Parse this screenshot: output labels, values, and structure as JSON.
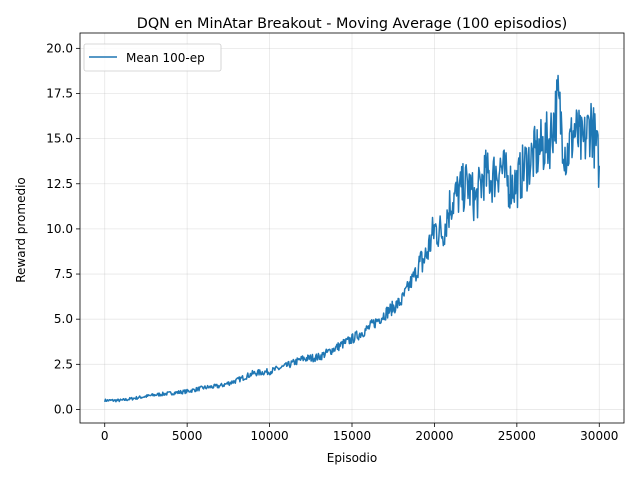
{
  "chart_data": {
    "type": "line",
    "title": "DQN en MinAtar Breakout - Moving Average (100 episodios)",
    "xlabel": "Episodio",
    "ylabel": "Reward promedio",
    "xlim": [
      -1500,
      31500
    ],
    "ylim": [
      -0.75,
      20.85
    ],
    "xticks": [
      0,
      5000,
      10000,
      15000,
      20000,
      25000,
      30000
    ],
    "yticks": [
      0.0,
      2.5,
      5.0,
      7.5,
      10.0,
      12.5,
      15.0,
      17.5,
      20.0
    ],
    "grid": true,
    "legend_position": "top-left",
    "series": [
      {
        "name": "Mean 100-ep",
        "color": "#1f77b4",
        "x": [
          0,
          1000,
          2000,
          3000,
          4000,
          5000,
          6000,
          7000,
          8000,
          9000,
          10000,
          11000,
          12000,
          13000,
          14000,
          15000,
          16000,
          17000,
          18000,
          19000,
          19500,
          20000,
          20500,
          21000,
          21500,
          22000,
          22500,
          23000,
          23500,
          24000,
          24500,
          25000,
          25500,
          26000,
          26500,
          27000,
          27500,
          28000,
          28500,
          29000,
          29500,
          30000
        ],
        "y": [
          0.5,
          0.5,
          0.65,
          0.8,
          0.9,
          1.0,
          1.2,
          1.3,
          1.6,
          2.0,
          2.1,
          2.4,
          2.8,
          2.9,
          3.4,
          3.9,
          4.5,
          5.3,
          6.0,
          7.8,
          8.5,
          10.0,
          9.8,
          11.5,
          12.0,
          12.5,
          11.5,
          13.0,
          12.8,
          13.5,
          12.5,
          12.5,
          13.5,
          14.0,
          14.5,
          15.0,
          17.0,
          14.0,
          15.5,
          14.5,
          16.0,
          13.5
        ]
      }
    ]
  }
}
